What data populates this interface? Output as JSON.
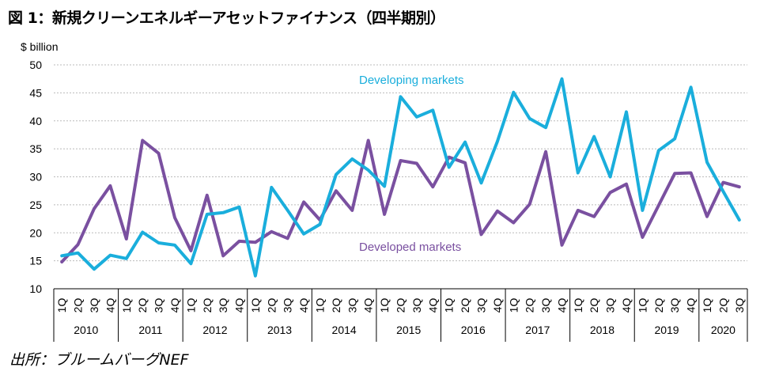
{
  "title": "図 1：新規クリーンエネルギーアセットファイナンス（四半期別）",
  "source": "出所：ブルームバーグNEF",
  "colors": {
    "developing": "#1aaedc",
    "developed": "#7a50a0",
    "grid": "#bbbbbb"
  },
  "chart_data": {
    "type": "line",
    "ylabel": "$ billion",
    "ylim": [
      10,
      50
    ],
    "yticks": [
      10,
      15,
      20,
      25,
      30,
      35,
      40,
      45,
      50
    ],
    "grid": "horizontal dotted",
    "quarters": [
      "1Q",
      "2Q",
      "3Q",
      "4Q"
    ],
    "years": [
      "2010",
      "2011",
      "2012",
      "2013",
      "2014",
      "2015",
      "2016",
      "2017",
      "2018",
      "2019",
      "2020"
    ],
    "x": [
      "2010 1Q",
      "2010 2Q",
      "2010 3Q",
      "2010 4Q",
      "2011 1Q",
      "2011 2Q",
      "2011 3Q",
      "2011 4Q",
      "2012 1Q",
      "2012 2Q",
      "2012 3Q",
      "2012 4Q",
      "2013 1Q",
      "2013 2Q",
      "2013 3Q",
      "2013 4Q",
      "2014 1Q",
      "2014 2Q",
      "2014 3Q",
      "2014 4Q",
      "2015 1Q",
      "2015 2Q",
      "2015 3Q",
      "2015 4Q",
      "2016 1Q",
      "2016 2Q",
      "2016 3Q",
      "2016 4Q",
      "2017 1Q",
      "2017 2Q",
      "2017 3Q",
      "2017 4Q",
      "2018 1Q",
      "2018 2Q",
      "2018 3Q",
      "2018 4Q",
      "2019 1Q",
      "2019 2Q",
      "2019 3Q",
      "2019 4Q",
      "2020 1Q",
      "2020 2Q",
      "2020 3Q"
    ],
    "series": [
      {
        "name": "Developing markets",
        "key": "developing",
        "values": [
          15.9,
          16.4,
          13.5,
          16.0,
          15.4,
          20.1,
          18.2,
          17.8,
          14.5,
          23.3,
          23.6,
          24.6,
          12.3,
          28.1,
          24.0,
          19.8,
          21.5,
          30.4,
          33.2,
          31.2,
          28.3,
          44.3,
          40.7,
          41.9,
          31.7,
          36.2,
          28.9,
          36.3,
          45.1,
          40.4,
          38.8,
          47.5,
          30.7,
          37.2,
          30.0,
          41.6,
          24.0,
          34.7,
          36.8,
          46.0,
          32.6,
          27.4,
          22.3
        ]
      },
      {
        "name": "Developed markets",
        "key": "developed",
        "values": [
          14.8,
          17.9,
          24.3,
          28.4,
          18.9,
          36.5,
          34.2,
          22.7,
          16.8,
          26.7,
          15.9,
          18.5,
          18.3,
          20.2,
          19.0,
          25.5,
          22.3,
          27.5,
          24.0,
          36.5,
          23.3,
          32.9,
          32.4,
          28.2,
          33.5,
          32.5,
          19.7,
          23.9,
          21.8,
          25.1,
          34.5,
          17.8,
          24.0,
          22.9,
          27.2,
          28.7,
          19.2,
          24.9,
          30.6,
          30.7,
          22.9,
          29.0,
          28.2
        ]
      }
    ]
  }
}
